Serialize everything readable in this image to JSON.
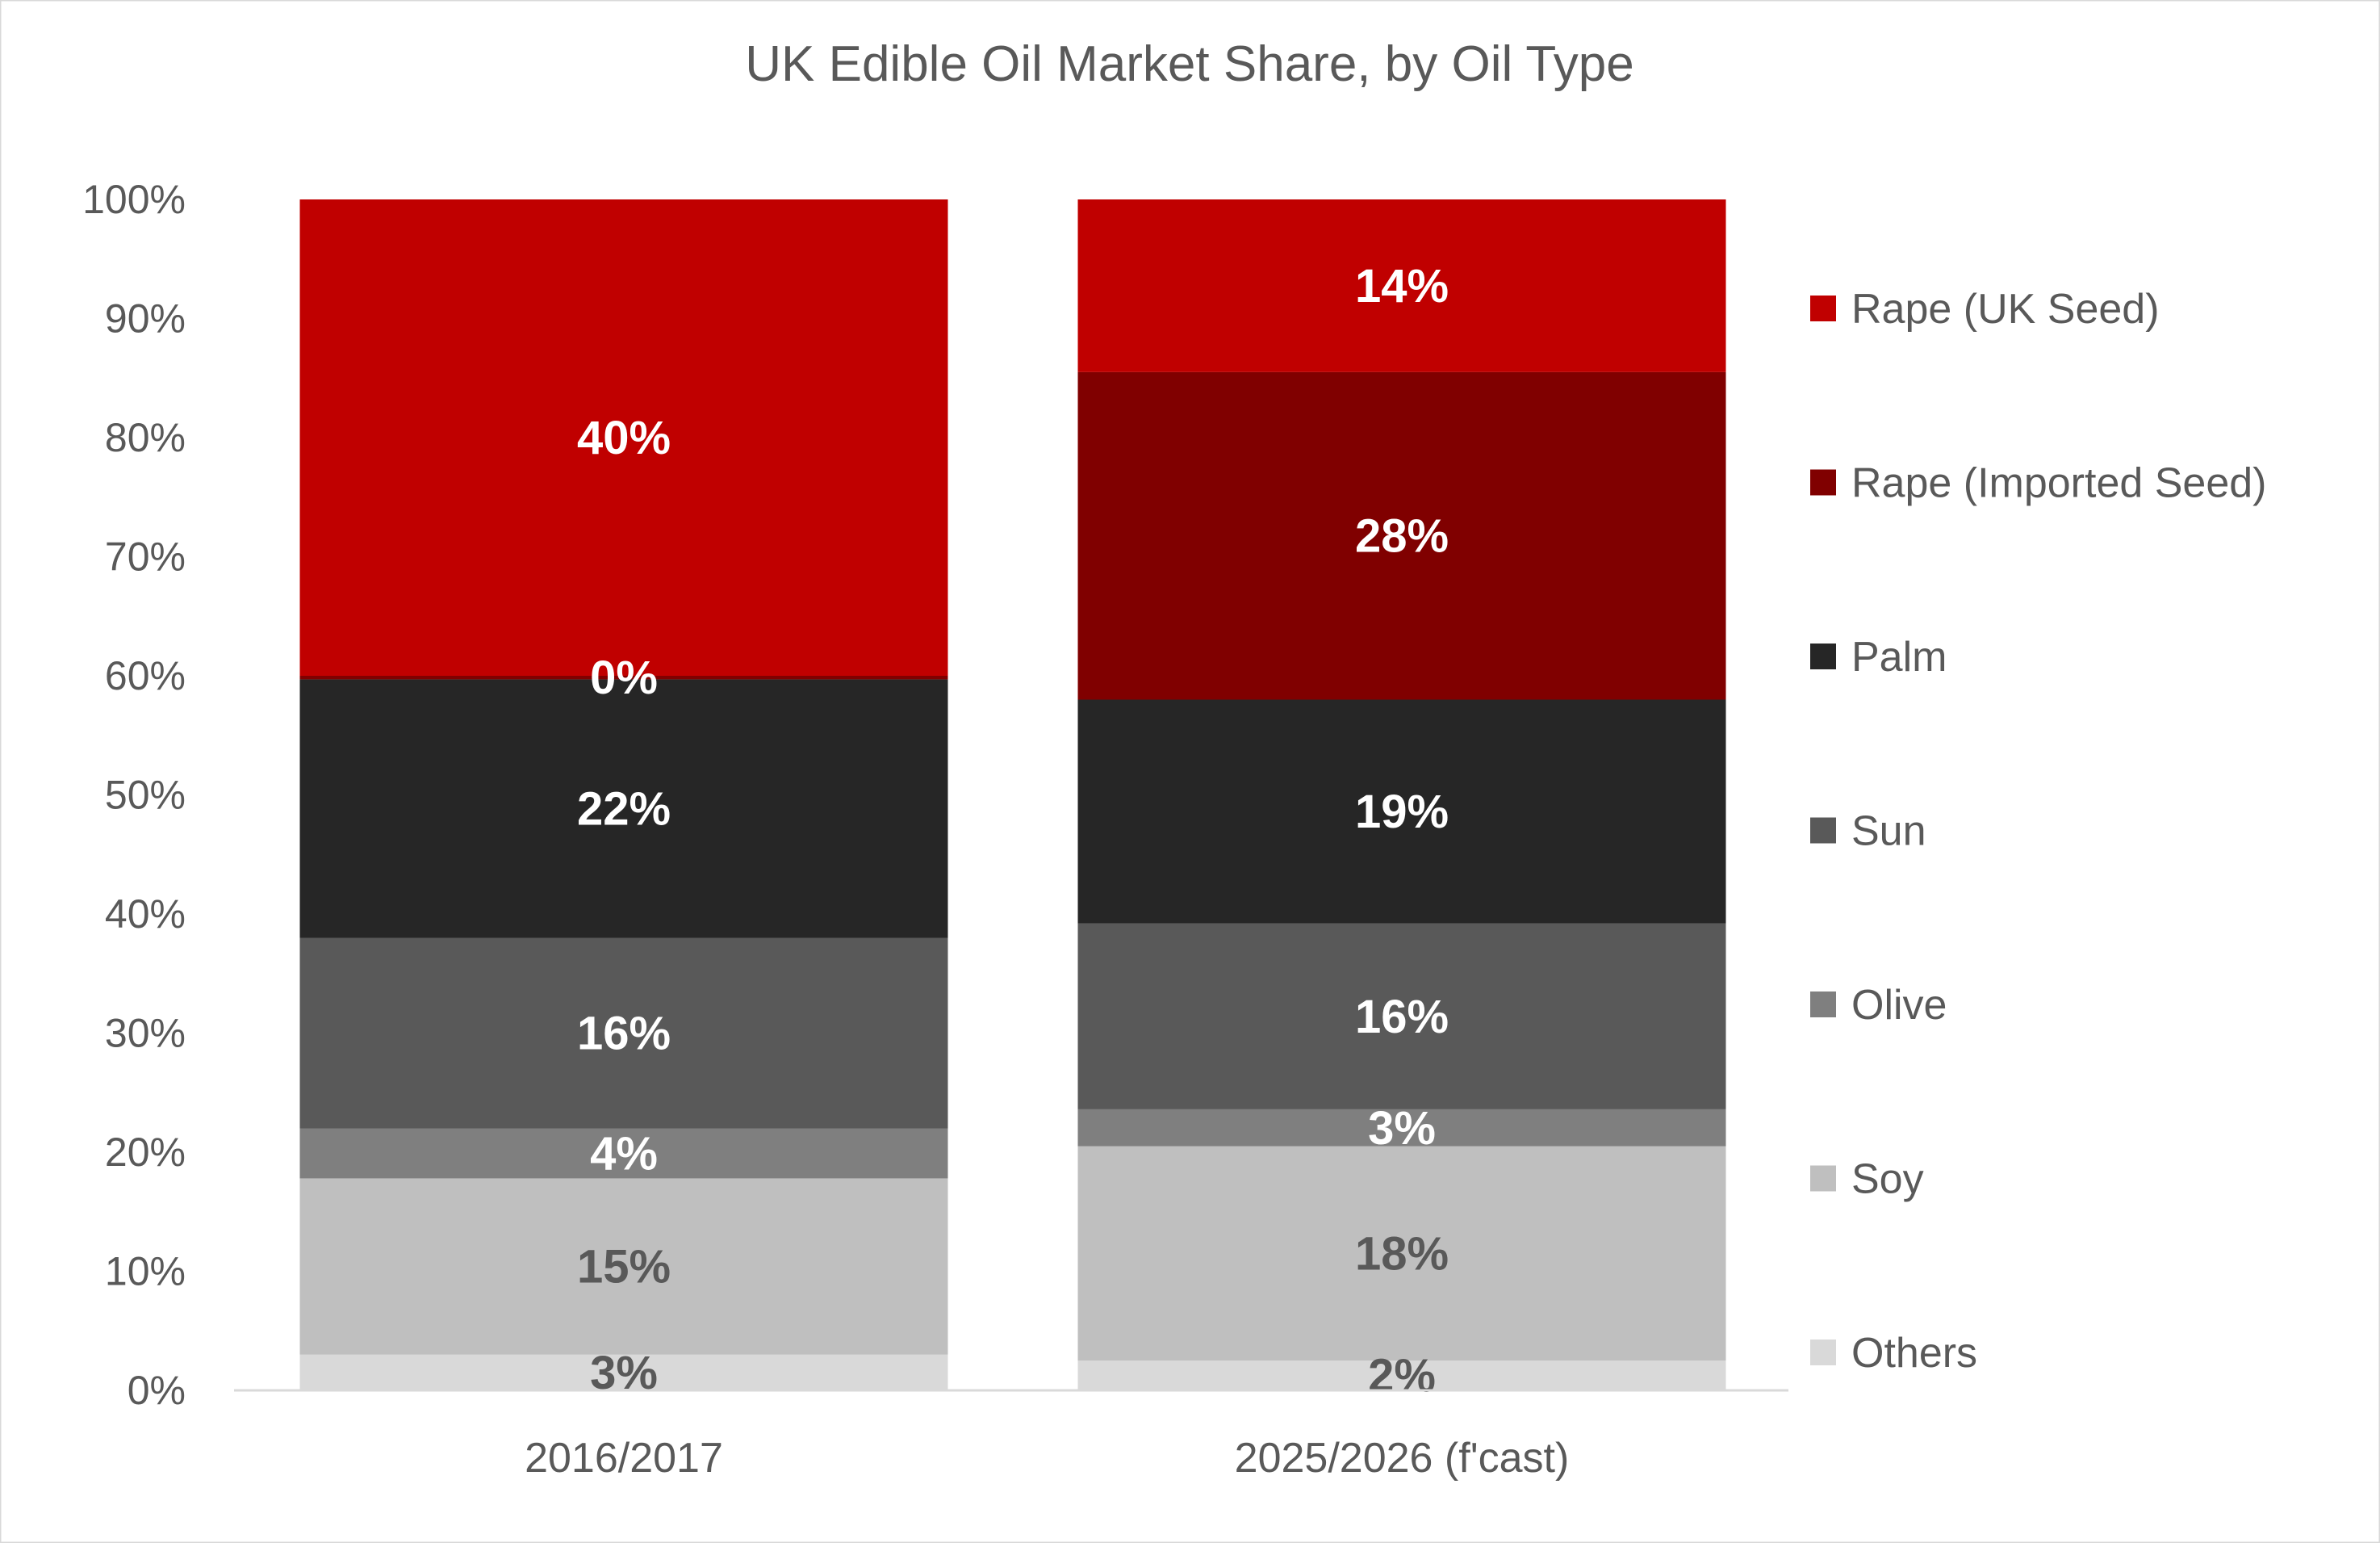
{
  "chart_data": {
    "type": "bar",
    "stacked": true,
    "normalized": true,
    "title": "UK Edible Oil Market Share, by Oil Type",
    "xlabel": "",
    "ylabel": "",
    "ylim": [
      0,
      100
    ],
    "y_ticks": [
      "0%",
      "10%",
      "20%",
      "30%",
      "40%",
      "50%",
      "60%",
      "70%",
      "80%",
      "90%",
      "100%"
    ],
    "grid": false,
    "legend_position": "right",
    "categories": [
      "2016/2017",
      "2025/2026 (f'cast)"
    ],
    "series": [
      {
        "name": "Others",
        "color": "#d9d9d9",
        "label_color": "#595959",
        "values": [
          3,
          2.5
        ],
        "labels": [
          "3%",
          "2%"
        ]
      },
      {
        "name": "Soy",
        "color": "#bfbfbf",
        "label_color": "#595959",
        "values": [
          14.8,
          18
        ],
        "labels": [
          "15%",
          "18%"
        ]
      },
      {
        "name": "Olive",
        "color": "#7f7f7f",
        "label_color": "#ffffff",
        "values": [
          4.2,
          3.1
        ],
        "labels": [
          "4%",
          "3%"
        ]
      },
      {
        "name": "Sun",
        "color": "#595959",
        "label_color": "#ffffff",
        "values": [
          16,
          15.6
        ],
        "labels": [
          "16%",
          "16%"
        ]
      },
      {
        "name": "Palm",
        "color": "#262626",
        "label_color": "#ffffff",
        "values": [
          21.7,
          18.8
        ],
        "labels": [
          "22%",
          "19%"
        ]
      },
      {
        "name": "Rape (Imported Seed)",
        "color": "#800000",
        "label_color": "#ffffff",
        "values": [
          0.3,
          27.5
        ],
        "labels": [
          "0%",
          "28%"
        ]
      },
      {
        "name": "Rape (UK Seed)",
        "color": "#c00000",
        "label_color": "#ffffff",
        "values": [
          40,
          14.5
        ],
        "labels": [
          "40%",
          "14%"
        ]
      }
    ],
    "legend_order": [
      "Rape (UK Seed)",
      "Rape (Imported Seed)",
      "Palm",
      "Sun",
      "Olive",
      "Soy",
      "Others"
    ]
  }
}
